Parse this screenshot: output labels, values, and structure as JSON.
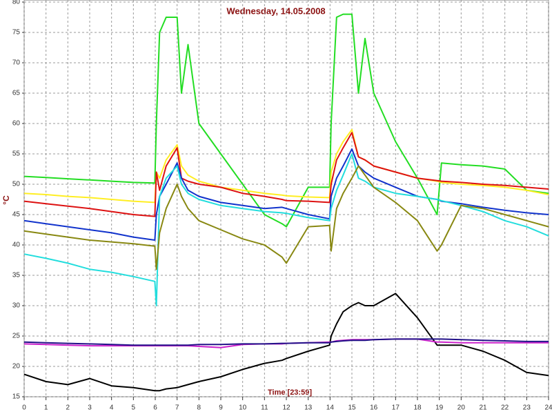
{
  "chart_data": {
    "type": "line",
    "title": "Wednesday, 14.05.2008",
    "x_label": "Time [23:59]",
    "y_label": "°C",
    "x": [
      0,
      1,
      2,
      3,
      4,
      5,
      5.98,
      6.05,
      6.2,
      6.5,
      7,
      7.2,
      7.5,
      8,
      9,
      10,
      11,
      11.8,
      12,
      13,
      13.98,
      14.05,
      14.3,
      14.6,
      15,
      15.3,
      15.6,
      16,
      17,
      18,
      18.9,
      19.1,
      20,
      21,
      22,
      23,
      24
    ],
    "series": [
      {
        "color": "#22dd22",
        "values": [
          51.3,
          51.1,
          50.9,
          50.7,
          50.5,
          50.3,
          50.2,
          60,
          75,
          77.5,
          77.5,
          65,
          73,
          60,
          55,
          50,
          45,
          43.5,
          43,
          49.5,
          49.5,
          60,
          77.5,
          78,
          78,
          65,
          74,
          65,
          57,
          51,
          45,
          53.5,
          53.2,
          53,
          52.5,
          49,
          48.5
        ]
      },
      {
        "color": "#ffee22",
        "values": [
          48.5,
          48.3,
          48,
          47.8,
          47.5,
          47.2,
          47,
          52,
          51,
          54,
          56.5,
          53,
          51.5,
          50.5,
          49.5,
          49,
          48.5,
          48.2,
          48.1,
          47.9,
          47.8,
          52,
          55,
          57,
          59,
          54.5,
          54,
          53,
          52,
          51,
          50.5,
          50.3,
          50,
          49.8,
          49.5,
          49,
          48.3
        ]
      },
      {
        "color": "#dd1111",
        "values": [
          47.2,
          46.8,
          46.4,
          46,
          45.5,
          45,
          44.7,
          52,
          49,
          53,
          56,
          51,
          50.5,
          50,
          49.5,
          48.5,
          48,
          47.5,
          47.3,
          47.2,
          47,
          50,
          54,
          56,
          58.5,
          54.5,
          54,
          53,
          52,
          51,
          50.6,
          50.5,
          50.3,
          50,
          49.8,
          49.5,
          49.2
        ]
      },
      {
        "color": "#1133cc",
        "values": [
          44,
          43.5,
          43,
          42.5,
          42,
          41.3,
          40.8,
          45,
          48,
          50,
          53.5,
          51,
          49,
          48,
          47,
          46.5,
          46,
          46.2,
          46,
          45,
          44.3,
          48,
          51,
          53,
          55.8,
          53,
          52,
          51,
          49.5,
          48,
          47.5,
          47.2,
          46.8,
          46.2,
          45.7,
          45.3,
          45
        ]
      },
      {
        "color": "#22dddd",
        "values": [
          38.5,
          37.8,
          37,
          36,
          35.5,
          34.8,
          34,
          30,
          48,
          51,
          53,
          50,
          48.5,
          47.5,
          46.5,
          46,
          45.5,
          45.3,
          45.2,
          44.5,
          44,
          46,
          49,
          51.5,
          55,
          51,
          50.5,
          49.5,
          48.5,
          48,
          47.5,
          47.3,
          46.5,
          45.5,
          44,
          43,
          41.5
        ]
      },
      {
        "color": "#888811",
        "values": [
          42.3,
          41.8,
          41.3,
          40.8,
          40.5,
          40.2,
          39.8,
          36,
          42,
          46,
          50,
          48,
          46,
          44,
          42.5,
          41,
          40,
          38,
          37,
          43,
          43.2,
          39,
          46,
          48.5,
          51,
          53,
          51.5,
          49.5,
          47,
          44,
          39,
          40,
          46.5,
          46,
          45,
          44,
          43
        ]
      },
      {
        "color": "#000000",
        "values": [
          18.7,
          17.5,
          17,
          18,
          16.8,
          16.5,
          16,
          16,
          16,
          16.3,
          16.5,
          16.7,
          17,
          17.5,
          18.3,
          19.5,
          20.5,
          21,
          21.3,
          22.5,
          23.5,
          25,
          27,
          29,
          30,
          30.5,
          30,
          30,
          32,
          28,
          23.5,
          23.5,
          23.5,
          22.5,
          21,
          19,
          18.5
        ]
      },
      {
        "color": "#cc22cc",
        "values": [
          23.7,
          23.6,
          23.5,
          23.4,
          23.4,
          23.4,
          23.4,
          23.4,
          23.4,
          23.4,
          23.4,
          23.4,
          23.4,
          23.3,
          23.1,
          23.6,
          23.7,
          23.7,
          23.8,
          23.9,
          24,
          24,
          24.2,
          24.3,
          24.4,
          24.4,
          24.4,
          24.4,
          24.5,
          24.5,
          24,
          24,
          23.9,
          23.9,
          23.9,
          23.9,
          23.9
        ]
      },
      {
        "color": "#221188",
        "values": [
          24,
          23.9,
          23.8,
          23.7,
          23.6,
          23.5,
          23.5,
          23.5,
          23.5,
          23.5,
          23.5,
          23.5,
          23.5,
          23.6,
          23.6,
          23.7,
          23.7,
          23.8,
          23.8,
          23.9,
          23.9,
          24,
          24.1,
          24.2,
          24.3,
          24.3,
          24.3,
          24.4,
          24.5,
          24.5,
          24.5,
          24.5,
          24.4,
          24.3,
          24.2,
          24.1,
          24.1
        ]
      }
    ],
    "xlim": [
      0,
      24
    ],
    "ylim": [
      15,
      80
    ],
    "xticks": [
      0,
      1,
      2,
      3,
      4,
      5,
      6,
      7,
      8,
      9,
      10,
      11,
      12,
      13,
      14,
      15,
      16,
      17,
      18,
      19,
      20,
      21,
      22,
      23,
      24
    ],
    "yticks": [
      15,
      20,
      25,
      30,
      35,
      40,
      45,
      50,
      55,
      60,
      65,
      70,
      75,
      80
    ],
    "grid": true
  }
}
